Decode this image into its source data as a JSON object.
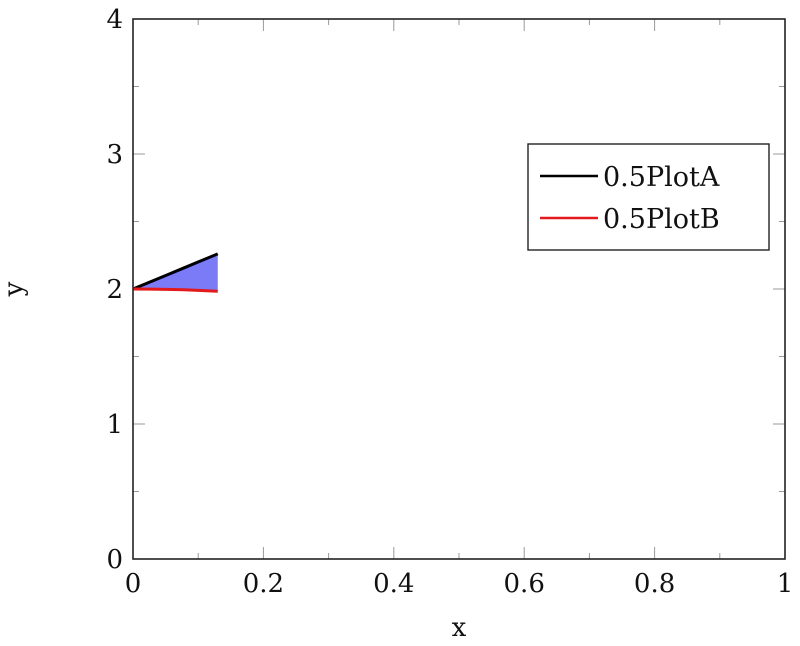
{
  "chart_data": {
    "type": "line",
    "title": "",
    "xlabel": "x",
    "ylabel": "y",
    "xlim": [
      0,
      1
    ],
    "ylim": [
      0,
      4
    ],
    "xticks": [
      0,
      0.2,
      0.4,
      0.6,
      0.8,
      1
    ],
    "xtick_labels": [
      "0",
      "0.2",
      "0.4",
      "0.6",
      "0.8",
      "1"
    ],
    "xminor_ticks": [
      0.1,
      0.3,
      0.5,
      0.7,
      0.9
    ],
    "yticks": [
      0,
      1,
      2,
      3,
      4
    ],
    "ytick_labels": [
      "0",
      "1",
      "2",
      "3",
      "4"
    ],
    "yminor_ticks": [
      0.5,
      1.5,
      2.5,
      3.5
    ],
    "grid": false,
    "legend_position": "upper right (inside, mid-height)",
    "series": [
      {
        "name": "0.5PlotA",
        "color": "#000000",
        "x": [
          0,
          0.026,
          0.052,
          0.078,
          0.104,
          0.13
        ],
        "y": [
          2.0,
          2.052,
          2.104,
          2.156,
          2.208,
          2.26
        ]
      },
      {
        "name": "0.5PlotB",
        "color": "#e31a1c",
        "x": [
          0,
          0.026,
          0.052,
          0.078,
          0.104,
          0.13
        ],
        "y": [
          2.0,
          1.999,
          1.997,
          1.994,
          1.989,
          1.983
        ]
      }
    ],
    "fill_between": {
      "between": [
        "0.5PlotA",
        "0.5PlotB"
      ],
      "color": "#7b7bf7",
      "x_range": [
        0,
        0.13
      ]
    }
  },
  "legend": {
    "items": [
      {
        "label": "0.5PlotA",
        "color": "#000000"
      },
      {
        "label": "0.5PlotB",
        "color": "#e31a1c"
      }
    ]
  }
}
